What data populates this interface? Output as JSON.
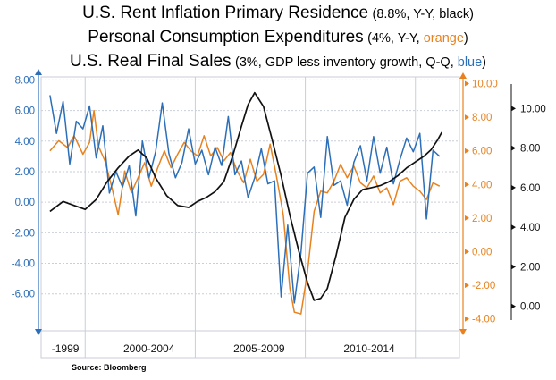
{
  "title": {
    "line1_main": "U.S. Rent Inflation Primary Residence",
    "line1_note": "(8.8%, Y-Y, black)",
    "line2_main": "Personal Consumption  Expenditures",
    "line2_note_a": "(4%, Y-Y, ",
    "line2_note_color": "orange",
    "line2_note_b": ")",
    "line3_main": "U.S. Real Final Sales",
    "line3_note_a": "(3%, GDP less inventory growth, Q-Q, ",
    "line3_note_color": "blue",
    "line3_note_b": ")"
  },
  "source": "Source:  Bloomberg",
  "colors": {
    "black": "#111111",
    "orange": "#e8821e",
    "blue": "#2c6fb8",
    "grid": "#c9ced8"
  },
  "chart_data": {
    "type": "line",
    "x_unit": "year (decimal)",
    "x_range": [
      1997.5,
      2016.5
    ],
    "x_period_labels": [
      {
        "label": "-1999",
        "center": 1998.6
      },
      {
        "label": "2000-2004",
        "center": 2002.4
      },
      {
        "label": "2005-2009",
        "center": 2007.4
      },
      {
        "label": "2010-2014",
        "center": 2012.4
      }
    ],
    "x_period_dividers": [
      1999.5,
      2004.5,
      2009.5,
      2014.5
    ],
    "grid": true,
    "axes": {
      "left": {
        "ticks": [
          "8.00",
          "6.00",
          "4.00",
          "2.00",
          "0.00",
          "-2.00",
          "-4.00",
          "-6.00"
        ],
        "range": [
          -8.3,
          8.2
        ],
        "color": "#2c6fb8"
      },
      "right_inner": {
        "ticks": [
          "10.00",
          "8.00",
          "6.00",
          "4.00",
          "2.00",
          "0.00",
          "-2.00",
          "-4.00"
        ],
        "range": [
          -4.6,
          10.4
        ],
        "color": "#e8821e"
      },
      "right_outer": {
        "ticks": [
          "10.00",
          "8.00",
          "6.00",
          "4.00",
          "2.00",
          "0.00"
        ],
        "range": [
          -1.15,
          11.6
        ],
        "color": "#111111"
      }
    },
    "series": [
      {
        "key": "rent",
        "color": "#111111",
        "axis": "right_outer",
        "x": [
          1997.9,
          1998.5,
          1999.0,
          1999.5,
          2000.0,
          2000.5,
          2001.0,
          2001.5,
          2001.9,
          2002.3,
          2002.7,
          2003.2,
          2003.7,
          2004.2,
          2004.6,
          2005.0,
          2005.4,
          2005.8,
          2006.2,
          2006.6,
          2006.9,
          2007.2,
          2007.6,
          2008.0,
          2008.4,
          2008.8,
          2009.2,
          2009.6,
          2009.9,
          2010.2,
          2010.5,
          2010.9,
          2011.3,
          2011.7,
          2012.1,
          2012.5,
          2012.9,
          2013.3,
          2013.7,
          2014.1,
          2014.5,
          2014.9,
          2015.2,
          2015.5,
          2015.7
        ],
        "y": [
          4.8,
          5.3,
          5.1,
          4.9,
          5.4,
          6.3,
          7.0,
          7.6,
          7.9,
          7.5,
          6.5,
          5.6,
          5.1,
          5.0,
          5.3,
          5.5,
          5.8,
          6.3,
          7.6,
          9.1,
          10.2,
          10.8,
          10.1,
          8.4,
          6.6,
          4.6,
          2.8,
          1.2,
          0.3,
          0.4,
          0.9,
          2.6,
          4.5,
          5.4,
          5.9,
          6.0,
          6.1,
          6.3,
          6.6,
          7.0,
          7.3,
          7.6,
          7.9,
          8.4,
          8.8
        ]
      },
      {
        "key": "pce",
        "color": "#e8821e",
        "axis": "right_inner",
        "x": [
          1997.9,
          1998.3,
          1998.7,
          1999.0,
          1999.4,
          1999.7,
          1999.9,
          2000.1,
          2000.4,
          2000.7,
          2001.0,
          2001.3,
          2001.6,
          2001.9,
          2002.2,
          2002.5,
          2002.8,
          2003.1,
          2003.4,
          2003.7,
          2004.0,
          2004.3,
          2004.6,
          2004.9,
          2005.2,
          2005.5,
          2005.8,
          2006.1,
          2006.4,
          2006.7,
          2007.0,
          2007.3,
          2007.6,
          2007.9,
          2008.2,
          2008.5,
          2008.8,
          2009.0,
          2009.3,
          2009.6,
          2009.9,
          2010.2,
          2010.5,
          2010.8,
          2011.1,
          2011.4,
          2011.7,
          2012.0,
          2012.3,
          2012.6,
          2012.9,
          2013.2,
          2013.5,
          2013.8,
          2014.1,
          2014.4,
          2014.7,
          2015.0,
          2015.3,
          2015.6
        ],
        "y": [
          6.0,
          6.6,
          6.2,
          6.9,
          5.8,
          6.5,
          8.4,
          6.3,
          5.4,
          3.9,
          2.2,
          4.8,
          3.5,
          4.4,
          5.3,
          3.9,
          5.0,
          6.0,
          5.0,
          5.8,
          6.5,
          6.0,
          5.7,
          6.9,
          5.7,
          6.2,
          5.4,
          5.9,
          4.8,
          4.1,
          5.5,
          4.2,
          4.6,
          6.4,
          4.4,
          2.2,
          -2.2,
          -3.6,
          -3.7,
          -1.2,
          2.4,
          3.6,
          3.5,
          4.2,
          5.2,
          4.4,
          5.1,
          4.1,
          3.8,
          4.5,
          3.5,
          3.8,
          2.8,
          4.2,
          4.4,
          3.9,
          3.6,
          3.1,
          4.1,
          3.9
        ]
      },
      {
        "key": "sales",
        "color": "#2c6fb8",
        "axis": "left",
        "x": [
          1997.9,
          1998.2,
          1998.5,
          1998.8,
          1999.1,
          1999.4,
          1999.7,
          2000.0,
          2000.3,
          2000.6,
          2000.9,
          2001.2,
          2001.5,
          2001.8,
          2002.1,
          2002.4,
          2002.7,
          2003.0,
          2003.3,
          2003.6,
          2003.9,
          2004.2,
          2004.5,
          2004.8,
          2005.1,
          2005.4,
          2005.7,
          2006.0,
          2006.3,
          2006.6,
          2006.9,
          2007.2,
          2007.5,
          2007.8,
          2008.1,
          2008.4,
          2008.7,
          2009.0,
          2009.3,
          2009.6,
          2009.9,
          2010.2,
          2010.5,
          2010.8,
          2011.1,
          2011.4,
          2011.7,
          2012.0,
          2012.3,
          2012.6,
          2012.9,
          2013.2,
          2013.5,
          2013.8,
          2014.1,
          2014.4,
          2014.7,
          2015.0,
          2015.3,
          2015.6
        ],
        "y": [
          7.0,
          4.5,
          6.6,
          2.5,
          5.3,
          4.8,
          6.3,
          2.9,
          5.0,
          0.6,
          2.0,
          1.0,
          2.4,
          -0.9,
          4.0,
          1.6,
          3.3,
          6.5,
          3.2,
          1.6,
          2.6,
          4.8,
          2.5,
          3.4,
          1.8,
          3.6,
          2.4,
          5.6,
          1.8,
          2.7,
          0.3,
          1.6,
          3.5,
          1.2,
          1.4,
          -6.2,
          -1.5,
          -6.6,
          -3.3,
          1.9,
          2.3,
          -1.0,
          4.3,
          1.1,
          1.4,
          -0.2,
          2.6,
          3.7,
          1.4,
          4.3,
          1.9,
          3.6,
          1.2,
          2.8,
          4.2,
          3.3,
          4.5,
          -1.1,
          3.4,
          3.0
        ]
      }
    ]
  }
}
